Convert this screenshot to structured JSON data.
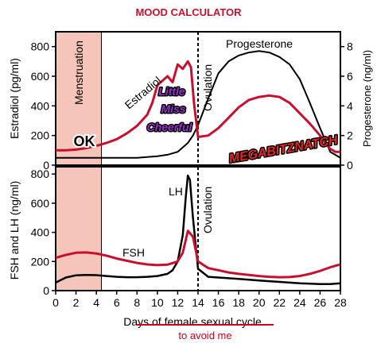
{
  "header": {
    "title": "MOOD CALCULATOR"
  },
  "colors": {
    "title": "#c8102e",
    "estradiol_curve": "#c8102e",
    "progesterone_curve": "#000000",
    "fsh_curve": "#c8102e",
    "lh_curve": "#000000",
    "menstruation_band": "#f4c5b8",
    "mood_sticker_fill": "#9b30d0",
    "strike_and_note": "#d0021b"
  },
  "annotations": {
    "menstruation": "Menstruation",
    "ok_sticker": "OK",
    "mood_sticker": [
      "Little",
      "Miss",
      "Cheerful"
    ],
    "villain_sticker": "MEGABITZNATCH",
    "ovulation_top": "Ovulation",
    "ovulation_bottom": "Ovulation",
    "handwritten_note": "to avoid me"
  },
  "chart_data": [
    {
      "type": "line",
      "panel": "top",
      "xlabel": "",
      "ylabel": "Estradiol (pg/ml)",
      "y2label": "Progesterone (ng/ml)",
      "xlim": [
        0,
        28
      ],
      "ylim": [
        0,
        900
      ],
      "y2lim": [
        0,
        9
      ],
      "yticks": [
        0,
        200,
        400,
        600,
        800
      ],
      "y2ticks": [
        0,
        2,
        4,
        6,
        8
      ],
      "shaded_region": {
        "label": "Menstruation",
        "x": [
          0,
          4.5
        ]
      },
      "vline": {
        "label": "Ovulation",
        "x": 14,
        "style": "dashed"
      },
      "series": [
        {
          "name": "Estradiol",
          "axis": "left",
          "x": [
            0,
            1,
            2,
            3,
            4,
            5,
            6,
            7,
            8,
            9,
            9.5,
            10,
            10.5,
            11,
            11.5,
            12,
            12.5,
            13,
            13.3,
            13.6,
            14,
            15,
            16,
            17,
            18,
            19,
            20,
            21,
            22,
            23,
            24,
            25,
            26,
            26.5,
            27,
            27.5,
            28
          ],
          "y": [
            100,
            100,
            105,
            115,
            130,
            150,
            175,
            215,
            265,
            340,
            420,
            540,
            570,
            600,
            560,
            680,
            650,
            700,
            660,
            420,
            190,
            200,
            250,
            320,
            390,
            440,
            460,
            470,
            460,
            420,
            350,
            280,
            200,
            150,
            110,
            90,
            90
          ]
        },
        {
          "name": "Progesterone",
          "axis": "right",
          "x": [
            0,
            2,
            4,
            6,
            8,
            10,
            11,
            12,
            13,
            13.5,
            14,
            15,
            16,
            17,
            18,
            19,
            20,
            21,
            22,
            23,
            24,
            25,
            26,
            27,
            28
          ],
          "y": [
            0.5,
            0.5,
            0.5,
            0.5,
            0.5,
            0.6,
            0.7,
            0.9,
            1.5,
            2.0,
            2.7,
            4.5,
            6.2,
            7.0,
            7.4,
            7.6,
            7.7,
            7.6,
            7.3,
            6.8,
            5.8,
            4.2,
            2.5,
            0.9,
            0.5
          ]
        }
      ]
    },
    {
      "type": "line",
      "panel": "bottom",
      "xlabel": "Days of female sexual cycle",
      "ylabel": "FSH and LH (ng/ml)",
      "xlim": [
        0,
        28
      ],
      "ylim": [
        0,
        850
      ],
      "xticks": [
        0,
        2,
        4,
        6,
        8,
        10,
        12,
        14,
        16,
        18,
        20,
        22,
        24,
        26,
        28
      ],
      "yticks": [
        0,
        200,
        400,
        600,
        800
      ],
      "shaded_region": {
        "x": [
          0,
          4.5
        ]
      },
      "vline": {
        "label": "Ovulation",
        "x": 14,
        "style": "dashed"
      },
      "series": [
        {
          "name": "FSH",
          "x": [
            0,
            1,
            2,
            3,
            4,
            5,
            6,
            7,
            8,
            9,
            10,
            11,
            12,
            12.5,
            13,
            13.5,
            14,
            15,
            16,
            17,
            18,
            19,
            20,
            21,
            22,
            23,
            24,
            25,
            26,
            27,
            28
          ],
          "y": [
            225,
            245,
            260,
            262,
            255,
            240,
            220,
            205,
            190,
            180,
            175,
            178,
            200,
            260,
            410,
            370,
            200,
            155,
            140,
            125,
            115,
            108,
            100,
            95,
            92,
            93,
            100,
            115,
            135,
            160,
            180
          ]
        },
        {
          "name": "LH",
          "x": [
            0,
            1,
            2,
            3,
            4,
            5,
            6,
            7,
            8,
            9,
            10,
            11,
            11.5,
            12,
            12.5,
            12.8,
            13,
            13.2,
            13.5,
            14,
            15,
            16,
            17,
            18,
            19,
            20,
            21,
            22,
            23,
            24,
            25,
            26,
            27,
            28
          ],
          "y": [
            55,
            90,
            105,
            108,
            106,
            100,
            95,
            92,
            92,
            95,
            100,
            115,
            140,
            200,
            380,
            650,
            790,
            760,
            500,
            150,
            95,
            90,
            85,
            80,
            75,
            70,
            65,
            60,
            55,
            50,
            48,
            45,
            45,
            50
          ]
        }
      ]
    }
  ]
}
